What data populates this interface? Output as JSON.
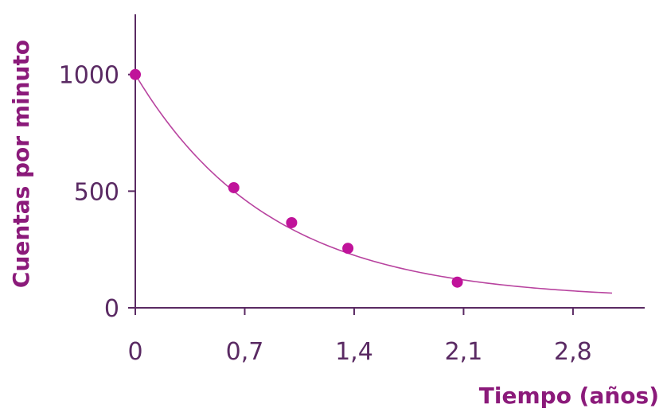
{
  "chart_data": {
    "type": "scatter",
    "xlabel": "Tiempo (años)",
    "ylabel": "Cuentas por minuto",
    "xlim": [
      0,
      3.2
    ],
    "ylim": [
      0,
      1250
    ],
    "x_ticks": [
      0,
      0.7,
      1.4,
      2.1,
      2.8
    ],
    "x_tick_labels": [
      "0",
      "0,7",
      "1,4",
      "2,1",
      "2,8"
    ],
    "y_ticks": [
      0,
      500,
      1000
    ],
    "y_tick_labels": [
      "0",
      "500",
      "1000"
    ],
    "grid": false,
    "legend": "none",
    "series": [
      {
        "type": "scatter",
        "x": [
          0,
          0.63,
          1.0,
          1.36,
          2.06
        ],
        "y": [
          1000,
          515,
          365,
          255,
          110
        ]
      },
      {
        "type": "line",
        "curve": "exponential-fit",
        "x_range": [
          0,
          3.05
        ],
        "y_start": 1000,
        "y_asymptote": 35,
        "decay_constant": 1.16
      }
    ],
    "colors": {
      "points": "#c0139a",
      "curve": "#b8439f",
      "axis": "#5a2a63",
      "title": "#8b1a7a"
    }
  }
}
